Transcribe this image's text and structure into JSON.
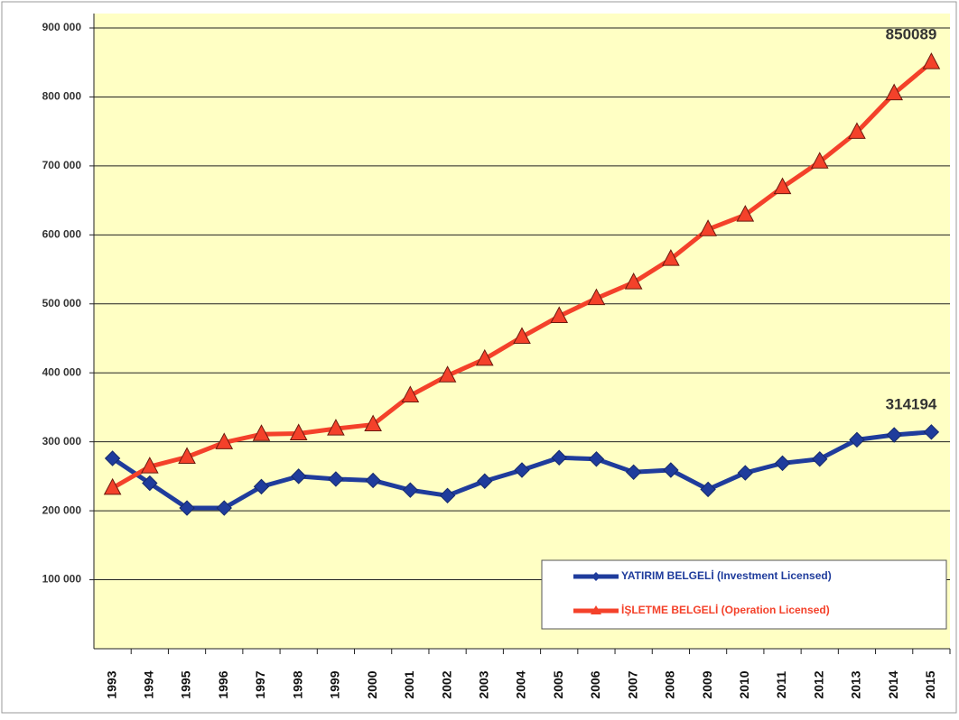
{
  "chart_data": {
    "type": "line",
    "categories": [
      "1993",
      "1994",
      "1995",
      "1996",
      "1997",
      "1998",
      "1999",
      "2000",
      "2001",
      "2002",
      "2003",
      "2004",
      "2005",
      "2006",
      "2007",
      "2008",
      "2009",
      "2010",
      "2011",
      "2012",
      "2013",
      "2014",
      "2015"
    ],
    "series": [
      {
        "name": "YATIRIM BELGELİ (Investment Licensed)",
        "color": "#1f3c9c",
        "marker": "diamond",
        "values": [
          276000,
          240000,
          204000,
          204000,
          235000,
          250000,
          246000,
          244000,
          230000,
          222000,
          243000,
          259000,
          277000,
          275000,
          256000,
          259000,
          231000,
          255000,
          269000,
          275000,
          303000,
          310000,
          314194
        ]
      },
      {
        "name": "İŞLETME BELGELİ (Operation Licensed)",
        "color": "#f4412a",
        "marker": "triangle",
        "values": [
          233000,
          264000,
          278000,
          299000,
          311000,
          312000,
          319000,
          325000,
          367000,
          396000,
          420000,
          452000,
          482000,
          508000,
          531000,
          565000,
          608000,
          629000,
          669000,
          706000,
          749000,
          805000,
          850089
        ]
      }
    ],
    "ylim": [
      0,
      900000
    ],
    "yticks": [
      {
        "value": 100000,
        "label": "100 000"
      },
      {
        "value": 200000,
        "label": "200 000"
      },
      {
        "value": 300000,
        "label": "300 000"
      },
      {
        "value": 400000,
        "label": "400 000"
      },
      {
        "value": 500000,
        "label": "500 000"
      },
      {
        "value": 600000,
        "label": "600 000"
      },
      {
        "value": 700000,
        "label": "700 000"
      },
      {
        "value": 800000,
        "label": "800 000"
      },
      {
        "value": 900000,
        "label": "900 000"
      }
    ],
    "grid": true,
    "legend": "lower right",
    "background": "#ffffc4"
  }
}
